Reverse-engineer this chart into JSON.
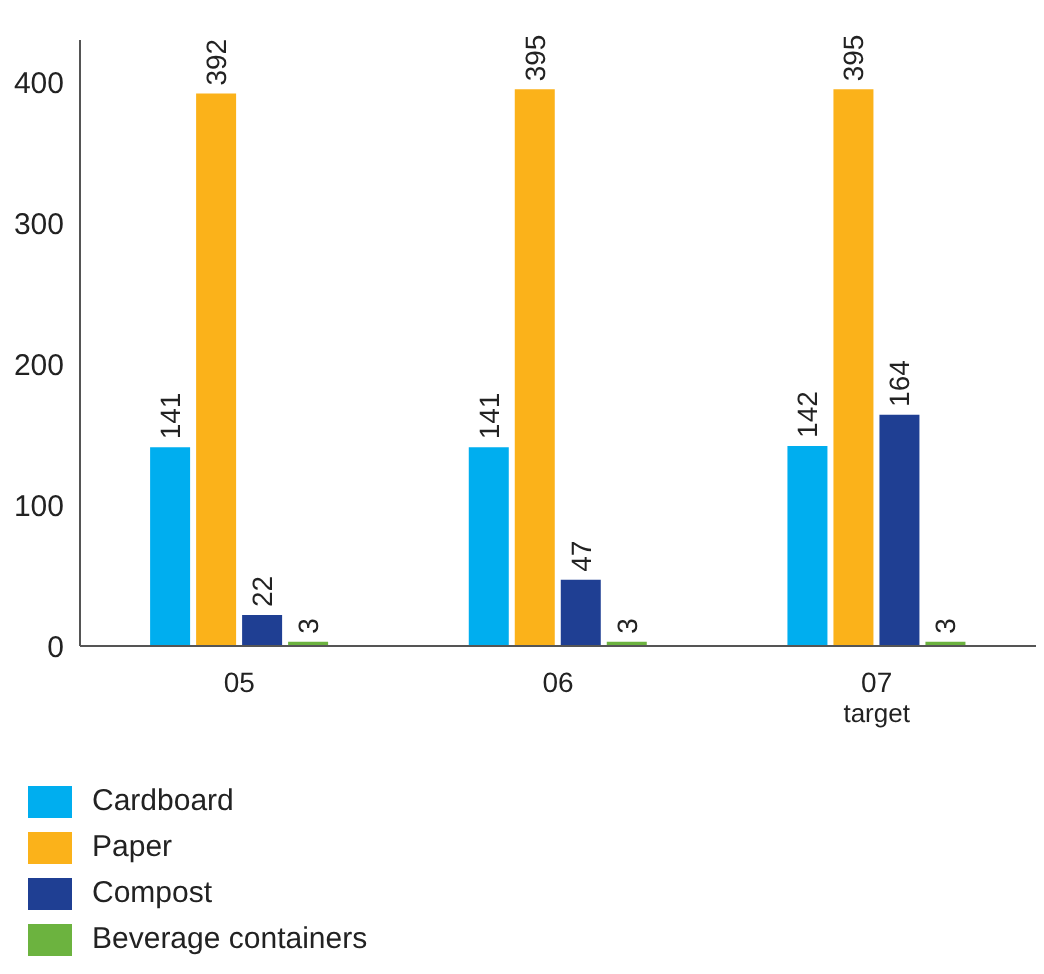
{
  "chart_data": {
    "type": "bar",
    "categories": [
      "05",
      "06",
      "07\ntarget"
    ],
    "series": [
      {
        "name": "Cardboard",
        "color": "#00aeef",
        "values": [
          141,
          141,
          142
        ]
      },
      {
        "name": "Paper",
        "color": "#fbb21a",
        "values": [
          392,
          395,
          395
        ]
      },
      {
        "name": "Compost",
        "color": "#1f3f93",
        "values": [
          22,
          47,
          164
        ]
      },
      {
        "name": "Beverage containers",
        "color": "#6cb33f",
        "values": [
          3,
          3,
          3
        ]
      }
    ],
    "ylim": [
      0,
      430
    ],
    "yticks": [
      0,
      100,
      200,
      300,
      400
    ],
    "grid": false,
    "legend": "bottom left",
    "data_labels": true
  }
}
